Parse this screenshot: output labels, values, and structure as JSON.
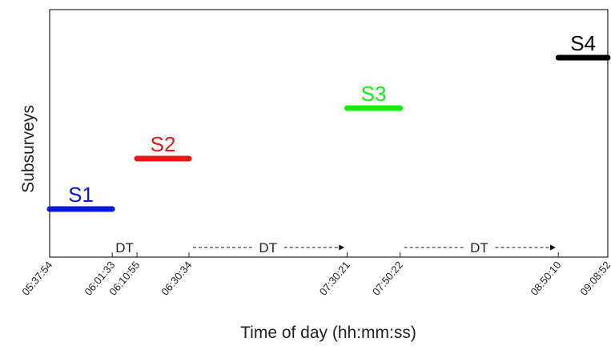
{
  "chart_data": {
    "type": "timeline",
    "title": "",
    "xlabel": "Time of day (hh:mm:ss)",
    "ylabel": "Subsurveys",
    "grid": false,
    "x_ticks": [
      "05:37:54",
      "06:01:33",
      "06:10:55",
      "06:30:34",
      "07:30:21",
      "07:50:22",
      "08:50:10",
      "09:08:52"
    ],
    "xlim": [
      "05:37:54",
      "09:08:52"
    ],
    "segments": [
      {
        "name": "S1",
        "start": "05:37:54",
        "end": "06:01:33",
        "color": "#0a14e0",
        "level": 1
      },
      {
        "name": "S2",
        "start": "06:10:55",
        "end": "06:30:34",
        "color": "#e61818",
        "level": 2
      },
      {
        "name": "S3",
        "start": "07:30:21",
        "end": "07:50:22",
        "color": "#11ee11",
        "level": 3
      },
      {
        "name": "S4",
        "start": "08:50:10",
        "end": "09:08:52",
        "color": "#000000",
        "level": 4
      }
    ],
    "downtimes": [
      {
        "label": "DT",
        "start": "06:01:33",
        "end": "06:10:55",
        "arrow": false
      },
      {
        "label": "DT",
        "start": "06:30:34",
        "end": "07:30:21",
        "arrow": true
      },
      {
        "label": "DT",
        "start": "07:50:22",
        "end": "08:50:10",
        "arrow": true
      }
    ]
  }
}
